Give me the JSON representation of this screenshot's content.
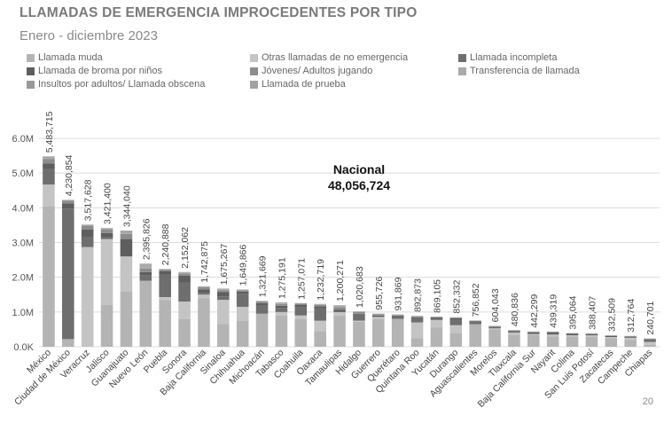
{
  "header": {
    "title": "LLAMADAS DE EMERGENCIA IMPROCEDENTES POR TIPO",
    "subtitle": "Enero - diciembre 2023"
  },
  "page_number": "20",
  "colors": {
    "muda": "#b4b4b4",
    "otras": "#c4c4c4",
    "incompleta": "#6e6e6e",
    "broma": "#5e5e5e",
    "jovenes": "#8c8c8c",
    "transferencia": "#aaaaaa",
    "insultos": "#999999",
    "prueba": "#a2a2a2",
    "grid": "#dcdcdc"
  },
  "chart_data": {
    "type": "bar",
    "stacked": true,
    "title": "LLAMADAS DE EMERGENCIA IMPROCEDENTES POR TIPO",
    "subtitle": "Enero - diciembre 2023",
    "ylim": [
      0,
      6000000
    ],
    "yticks": [
      0,
      1000000,
      2000000,
      3000000,
      4000000,
      5000000,
      6000000
    ],
    "ytick_labels": [
      "0.0K",
      "1.0M",
      "2.0M",
      "3.0M",
      "4.0M",
      "5.0M",
      "6.0M"
    ],
    "annotation": {
      "line1": "Nacional",
      "line2": "48,056,724"
    },
    "legend": [
      "Llamada muda",
      "Otras llamadas de no emergencia",
      "Llamada incompleta",
      "Llamada de broma por niños",
      "Jóvenes/ Adultos jugando",
      "Transferencia de llamada",
      "Insultos por adultos/ Llamada obscena",
      "Llamada de prueba"
    ],
    "categories": [
      "México",
      "Ciudad de México",
      "Veracruz",
      "Jalisco",
      "Guanajuato",
      "Nuevo León",
      "Puebla",
      "Sonora",
      "Baja California",
      "Sinaloa",
      "Chihuahua",
      "Michoacán",
      "Tabasco",
      "Coahuila",
      "Oaxaca",
      "Tamaulipas",
      "Hidalgo",
      "Guerrero",
      "Querétaro",
      "Quintana Roo",
      "Yucatán",
      "Durango",
      "Aguascalientes",
      "Morelos",
      "Tlaxcala",
      "Baja California Sur",
      "Nayarit",
      "Colima",
      "San Luis Potosí",
      "Zacatecas",
      "Campeche",
      "Chiapas"
    ],
    "totals": [
      5483715,
      4230854,
      3517628,
      3421400,
      3344040,
      2395826,
      2240888,
      2152062,
      1742875,
      1675267,
      1649866,
      1321669,
      1275191,
      1257071,
      1232719,
      1200271,
      1020683,
      955726,
      931869,
      892873,
      869105,
      852332,
      756852,
      604043,
      480836,
      442299,
      439319,
      395064,
      388407,
      332509,
      312764,
      240701
    ],
    "total_labels": [
      "5,483,715",
      "4,230,854",
      "3,517,628",
      "3,421,400",
      "3,344,040",
      "2,395,826",
      "2,240,888",
      "2,152,062",
      "1,742,875",
      "1,675,267",
      "1,649,866",
      "1,321,669",
      "1,275,191",
      "1,257,071",
      "1,232,719",
      "1,200,271",
      "1,020,683",
      "955,726",
      "931,869",
      "892,873",
      "869,105",
      "852,332",
      "756,852",
      "604,043",
      "480,836",
      "442,299",
      "439,319",
      "395,064",
      "388,407",
      "332,509",
      "312,764",
      "240,701"
    ],
    "series": [
      {
        "name": "Llamada muda",
        "color_key": "muda",
        "values": [
          4050000,
          220000,
          0,
          1200000,
          1600000,
          1900000,
          1350000,
          800000,
          1400000,
          650000,
          750000,
          950000,
          900000,
          800000,
          450000,
          900000,
          720000,
          800000,
          800000,
          250000,
          550000,
          400000,
          650000,
          500000,
          350000,
          350000,
          300000,
          300000,
          280000,
          250000,
          200000,
          60000
        ]
      },
      {
        "name": "Otras llamadas de no emergencia",
        "color_key": "otras",
        "values": [
          620000,
          0,
          2870000,
          1900000,
          1000000,
          0,
          80000,
          500000,
          100000,
          700000,
          400000,
          0,
          100000,
          100000,
          300000,
          100000,
          30000,
          60000,
          0,
          450000,
          220000,
          220000,
          0,
          30000,
          60000,
          20000,
          50000,
          30000,
          50000,
          30000,
          60000,
          80000
        ]
      },
      {
        "name": "Llamada incompleta",
        "color_key": "incompleta",
        "values": [
          450000,
          3760000,
          280000,
          50000,
          0,
          150000,
          650000,
          550000,
          50000,
          100000,
          380000,
          250000,
          120000,
          230000,
          350000,
          0,
          200000,
          0,
          40000,
          120000,
          60000,
          150000,
          50000,
          20000,
          0,
          0,
          20000,
          0,
          0,
          0,
          0,
          70000
        ]
      },
      {
        "name": "Llamada de broma por niños",
        "color_key": "broma",
        "values": [
          160000,
          150000,
          220000,
          120000,
          500000,
          100000,
          90000,
          200000,
          100000,
          120000,
          60000,
          50000,
          60000,
          80000,
          60000,
          60000,
          0,
          40000,
          40000,
          30000,
          20000,
          50000,
          30000,
          20000,
          40000,
          40000,
          40000,
          40000,
          30000,
          30000,
          30000,
          10000
        ]
      },
      {
        "name": "Jóvenes/ Adultos jugando",
        "color_key": "jovenes",
        "values": [
          120000,
          70000,
          120000,
          100000,
          150000,
          100000,
          50000,
          60000,
          60000,
          60000,
          40000,
          50000,
          50000,
          30000,
          40000,
          80000,
          50000,
          40000,
          30000,
          25000,
          10000,
          20000,
          20000,
          20000,
          20000,
          20000,
          20000,
          15000,
          20000,
          15000,
          15000,
          10000
        ]
      },
      {
        "name": "Transferencia de llamada",
        "color_key": "transferencia",
        "values": [
          50000,
          20000,
          20000,
          30000,
          50000,
          130000,
          10000,
          30000,
          20000,
          20000,
          10000,
          10000,
          20000,
          10000,
          20000,
          40000,
          10000,
          10000,
          10000,
          10000,
          5000,
          5000,
          5000,
          10000,
          5000,
          5000,
          5000,
          5000,
          5000,
          5000,
          5000,
          5000
        ]
      },
      {
        "name": "Insultos por adultos/ Llamada obscena",
        "color_key": "insultos",
        "values": [
          20000,
          8000,
          5000,
          15000,
          30000,
          10000,
          8000,
          10000,
          10000,
          20000,
          8000,
          10000,
          20000,
          5000,
          10000,
          15000,
          8000,
          4000,
          10000,
          5000,
          2000,
          5000,
          1000,
          3000,
          5000,
          5000,
          3000,
          4000,
          2000,
          2000,
          2000,
          4000
        ]
      },
      {
        "name": "Llamada de prueba",
        "color_key": "prueba",
        "values": [
          13715,
          2854,
          2628,
          6400,
          14040,
          5826,
          2888,
          2062,
          2875,
          5267,
          1866,
          1669,
          5191,
          2071,
          2719,
          5271,
          2683,
          1726,
          1869,
          2873,
          2105,
          2332,
          852,
          1043,
          836,
          2299,
          1319,
          1064,
          1407,
          509,
          764,
          1701
        ]
      }
    ]
  }
}
